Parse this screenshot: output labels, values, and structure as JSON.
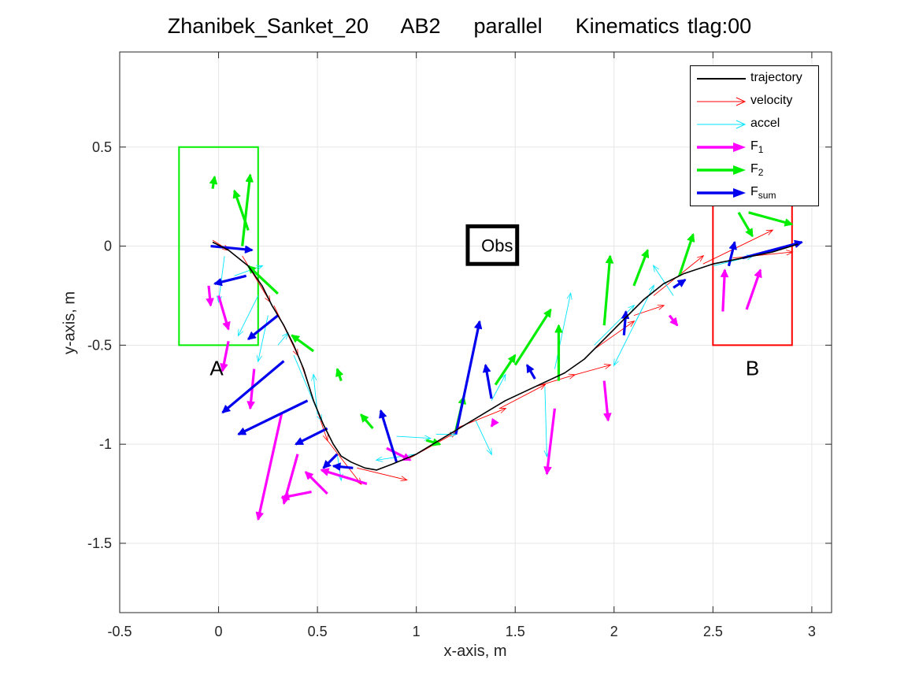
{
  "chart_data": {
    "type": "line",
    "title": "Zhanibek_Sanket_20    AB2    parallel    Kinematics tlag:00",
    "xlabel": "x-axis, m",
    "ylabel": "y-axis, m",
    "xlim": [
      -0.5,
      3.1
    ],
    "ylim": [
      -1.85,
      0.98
    ],
    "xticks": [
      -0.5,
      0,
      0.5,
      1,
      1.5,
      2,
      2.5,
      3
    ],
    "xtick_labels": [
      "-0.5",
      "0",
      "0.5",
      "1",
      "1.5",
      "2",
      "2.5",
      "3"
    ],
    "yticks": [
      -1.5,
      -1,
      -0.5,
      0,
      0.5
    ],
    "ytick_labels": [
      "-1.5",
      "-1",
      "-0.5",
      "0",
      "0.5"
    ],
    "grid": true,
    "legend_position": "top-right",
    "legend": [
      {
        "key": "trajectory",
        "label": "trajectory",
        "sub": "",
        "color": "#000000",
        "style": "line"
      },
      {
        "key": "velocity",
        "label": "velocity",
        "sub": "",
        "color": "#ff0000",
        "style": "thin-arrow"
      },
      {
        "key": "accel",
        "label": "accel",
        "sub": "",
        "color": "#00e5ff",
        "style": "thin-arrow"
      },
      {
        "key": "F1",
        "label": "F",
        "sub": "1",
        "color": "#ff00ff",
        "style": "thick-arrow"
      },
      {
        "key": "F2",
        "label": "F",
        "sub": "2",
        "color": "#00ee00",
        "style": "thick-arrow"
      },
      {
        "key": "Fsum",
        "label": "F",
        "sub": "sum",
        "color": "#0000ee",
        "style": "thick-arrow"
      }
    ],
    "regions": [
      {
        "label": "A",
        "x": [
          -0.2,
          0.2
        ],
        "y": [
          -0.5,
          0.5
        ],
        "color": "#00ee00",
        "label_pos": [
          -0.01,
          -0.62
        ]
      },
      {
        "label": "B",
        "x": [
          2.5,
          2.9
        ],
        "y": [
          -0.5,
          0.25
        ],
        "color": "#ff0000",
        "label_pos": [
          2.7,
          -0.62
        ]
      }
    ],
    "obstacle": {
      "label": "Obs",
      "x": [
        1.26,
        1.51
      ],
      "y": [
        -0.09,
        0.1
      ],
      "color": "#000000"
    },
    "series": [
      {
        "name": "trajectory",
        "color": "#000000",
        "points": [
          [
            -0.03,
            0.02
          ],
          [
            0.05,
            -0.02
          ],
          [
            0.15,
            -0.1
          ],
          [
            0.22,
            -0.2
          ],
          [
            0.27,
            -0.3
          ],
          [
            0.33,
            -0.4
          ],
          [
            0.38,
            -0.5
          ],
          [
            0.43,
            -0.62
          ],
          [
            0.48,
            -0.78
          ],
          [
            0.53,
            -0.9
          ],
          [
            0.58,
            -1.0
          ],
          [
            0.62,
            -1.06
          ],
          [
            0.67,
            -1.09
          ],
          [
            0.74,
            -1.12
          ],
          [
            0.8,
            -1.13
          ],
          [
            0.88,
            -1.1
          ],
          [
            1.0,
            -1.05
          ],
          [
            1.15,
            -0.96
          ],
          [
            1.3,
            -0.87
          ],
          [
            1.45,
            -0.78
          ],
          [
            1.6,
            -0.71
          ],
          [
            1.75,
            -0.64
          ],
          [
            1.85,
            -0.57
          ],
          [
            1.95,
            -0.47
          ],
          [
            2.05,
            -0.37
          ],
          [
            2.15,
            -0.27
          ],
          [
            2.25,
            -0.19
          ],
          [
            2.35,
            -0.14
          ],
          [
            2.5,
            -0.09
          ],
          [
            2.65,
            -0.06
          ],
          [
            2.8,
            -0.03
          ],
          [
            2.93,
            0.01
          ]
        ]
      },
      {
        "name": "velocity",
        "color": "#ff0000",
        "arrows": [
          [
            -0.03,
            0.03,
            0.05,
            -0.02
          ],
          [
            0.12,
            -0.05,
            0.26,
            -0.28
          ],
          [
            0.28,
            -0.3,
            0.4,
            -0.55
          ],
          [
            0.42,
            -0.6,
            0.55,
            -0.98
          ],
          [
            0.55,
            -0.98,
            0.72,
            -1.2
          ],
          [
            0.7,
            -1.12,
            0.95,
            -1.18
          ],
          [
            0.95,
            -1.08,
            1.2,
            -0.94
          ],
          [
            1.2,
            -0.92,
            1.45,
            -0.82
          ],
          [
            1.42,
            -0.82,
            1.65,
            -0.7
          ],
          [
            1.6,
            -0.71,
            1.8,
            -0.65
          ],
          [
            1.8,
            -0.65,
            1.98,
            -0.6
          ],
          [
            1.9,
            -0.52,
            2.1,
            -0.38
          ],
          [
            2.1,
            -0.35,
            2.25,
            -0.3
          ],
          [
            2.2,
            -0.25,
            2.45,
            -0.05
          ],
          [
            2.45,
            -0.09,
            2.8,
            0.08
          ],
          [
            2.6,
            -0.06,
            2.9,
            -0.03
          ]
        ]
      },
      {
        "name": "accel",
        "color": "#00e5ff",
        "arrows": [
          [
            0.03,
            -0.05,
            0.0,
            -0.28
          ],
          [
            0.08,
            -0.15,
            0.22,
            -0.1
          ],
          [
            0.2,
            -0.25,
            0.1,
            -0.45
          ],
          [
            0.25,
            -0.35,
            0.2,
            -0.58
          ],
          [
            0.3,
            -0.5,
            0.35,
            -0.44
          ],
          [
            0.38,
            -0.55,
            0.52,
            -0.88
          ],
          [
            0.5,
            -0.85,
            0.48,
            -0.65
          ],
          [
            0.6,
            -1.05,
            0.62,
            -1.18
          ],
          [
            0.9,
            -0.96,
            1.07,
            -0.97
          ],
          [
            1.0,
            -1.05,
            0.8,
            -1.08
          ],
          [
            1.1,
            -0.95,
            1.2,
            -0.95
          ],
          [
            1.3,
            -0.88,
            1.38,
            -1.05
          ],
          [
            1.38,
            -0.78,
            1.45,
            -0.65
          ],
          [
            1.65,
            -0.71,
            1.66,
            -1.06
          ],
          [
            1.7,
            -0.62,
            1.78,
            -0.24
          ],
          [
            1.9,
            -0.5,
            2.1,
            -0.3
          ],
          [
            2.1,
            -0.4,
            2.2,
            -0.2
          ],
          [
            2.15,
            -0.3,
            2.0,
            -0.6
          ],
          [
            2.3,
            -0.25,
            2.2,
            -0.1
          ],
          [
            2.5,
            -0.1,
            2.7,
            -0.05
          ]
        ]
      },
      {
        "name": "F1",
        "color": "#ff00ff",
        "arrows": [
          [
            -0.05,
            -0.2,
            -0.04,
            -0.3
          ],
          [
            0.0,
            -0.25,
            0.05,
            -0.42
          ],
          [
            0.05,
            -0.48,
            0.02,
            -0.63
          ],
          [
            0.18,
            -0.62,
            0.16,
            -0.82
          ],
          [
            0.32,
            -0.84,
            0.2,
            -1.38
          ],
          [
            0.4,
            -1.05,
            0.33,
            -1.3
          ],
          [
            0.47,
            -1.24,
            0.32,
            -1.27
          ],
          [
            0.55,
            -1.25,
            0.44,
            -1.14
          ],
          [
            0.75,
            -1.2,
            0.52,
            -1.13
          ],
          [
            0.85,
            -1.02,
            0.97,
            -1.08
          ],
          [
            1.4,
            -0.88,
            1.38,
            -0.91
          ],
          [
            1.7,
            -0.82,
            1.66,
            -1.15
          ],
          [
            1.95,
            -0.68,
            1.97,
            -0.88
          ],
          [
            2.28,
            -0.35,
            2.32,
            -0.4
          ],
          [
            2.55,
            -0.33,
            2.56,
            -0.12
          ],
          [
            2.67,
            -0.32,
            2.74,
            -0.12
          ]
        ]
      },
      {
        "name": "F2",
        "color": "#00ee00",
        "arrows": [
          [
            -0.03,
            0.29,
            -0.02,
            0.35
          ],
          [
            0.15,
            0.08,
            0.08,
            0.28
          ],
          [
            0.12,
            0.0,
            0.16,
            0.36
          ],
          [
            0.3,
            -0.24,
            0.15,
            -0.1
          ],
          [
            0.48,
            -0.53,
            0.37,
            -0.45
          ],
          [
            0.62,
            -0.68,
            0.6,
            -0.62
          ],
          [
            0.78,
            -0.92,
            0.72,
            -0.85
          ],
          [
            1.05,
            -0.98,
            1.12,
            -1.0
          ],
          [
            1.2,
            -0.93,
            1.24,
            -0.76
          ],
          [
            1.4,
            -0.7,
            1.5,
            -0.55
          ],
          [
            1.5,
            -0.6,
            1.68,
            -0.32
          ],
          [
            1.72,
            -0.68,
            1.72,
            -0.4
          ],
          [
            1.95,
            -0.4,
            1.98,
            -0.05
          ],
          [
            2.1,
            -0.2,
            2.17,
            -0.02
          ],
          [
            2.33,
            -0.15,
            2.4,
            0.06
          ],
          [
            2.63,
            0.17,
            2.7,
            0.05
          ],
          [
            2.68,
            0.17,
            2.9,
            0.11
          ]
        ]
      },
      {
        "name": "Fsum",
        "color": "#0000ee",
        "arrows": [
          [
            -0.04,
            0.0,
            0.17,
            -0.02
          ],
          [
            0.14,
            -0.15,
            -0.02,
            -0.19
          ],
          [
            0.3,
            -0.35,
            0.15,
            -0.47
          ],
          [
            0.33,
            -0.58,
            0.02,
            -0.84
          ],
          [
            0.45,
            -0.78,
            0.1,
            -0.95
          ],
          [
            0.55,
            -0.92,
            0.39,
            -1.0
          ],
          [
            0.6,
            -1.05,
            0.53,
            -1.12
          ],
          [
            0.68,
            -1.12,
            0.58,
            -1.11
          ],
          [
            0.9,
            -1.09,
            0.82,
            -0.83
          ],
          [
            1.2,
            -0.95,
            1.32,
            -0.38
          ],
          [
            1.38,
            -0.77,
            1.35,
            -0.6
          ],
          [
            1.6,
            -0.67,
            1.56,
            -0.6
          ],
          [
            2.05,
            -0.45,
            2.06,
            -0.33
          ],
          [
            2.3,
            -0.21,
            2.36,
            -0.17
          ],
          [
            2.58,
            -0.1,
            2.61,
            0.02
          ],
          [
            2.65,
            -0.06,
            2.95,
            0.02
          ]
        ]
      }
    ]
  }
}
